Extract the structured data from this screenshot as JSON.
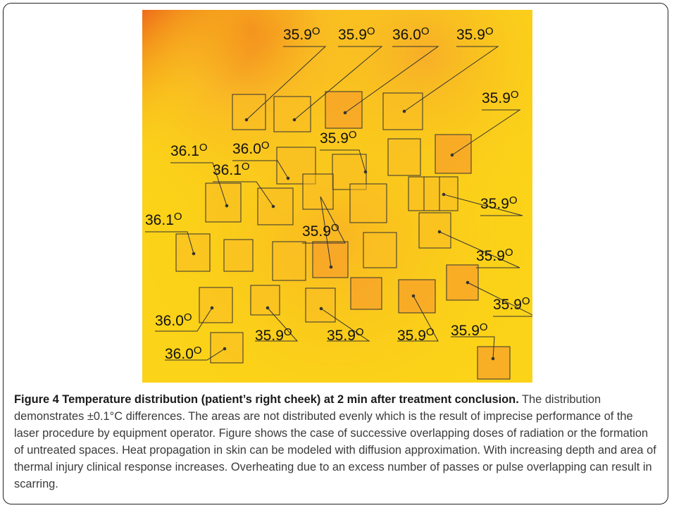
{
  "figure": {
    "image_description": "thermal image of patient's right cheek",
    "colors": {
      "warm_base": "#fbd318",
      "hot_patch": "#f7a12a",
      "edge_orange": "#f07a1c",
      "box_stroke": "#333333",
      "label_text": "#111111"
    },
    "annotations": [
      "35.9",
      "35.9",
      "36.0",
      "35.9",
      "35.9",
      "36.1",
      "36.0",
      "35.9",
      "36.1",
      "35.9",
      "36.1",
      "35.9",
      "35.9",
      "35.9",
      "36.0",
      "35.9",
      "35.9",
      "35.9",
      "35.9",
      "36.0"
    ],
    "degree_symbol": "O"
  },
  "caption": {
    "title": "Figure 4 Temperature distribution (patient’s right cheek) at 2 min after treatment conclusion.",
    "body": " The distribution demonstrates ±0.1°C differences. The areas are not distributed evenly which is the result of imprecise performance of the laser procedure by equipment operator. Figure shows the case of successive overlapping doses of radiation or the formation of untreated spaces. Heat propagation in skin can be modeled with diffusion approximation. With increasing depth and area of thermal injury clinical response increases. Overheating due to an excess number of passes or pulse overlapping can result in scarring."
  }
}
